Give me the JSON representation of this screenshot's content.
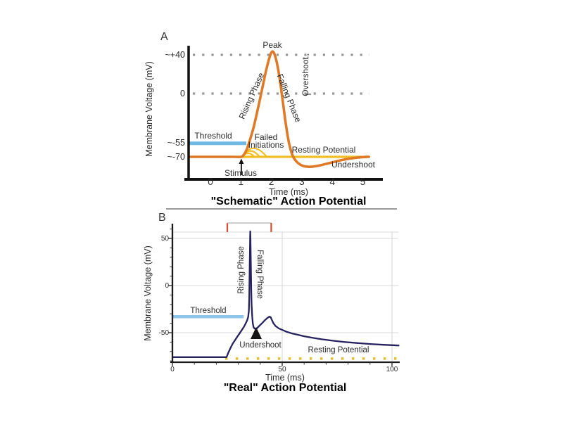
{
  "figure": {
    "background": "#ffffff",
    "separator_color": "#9a9a9a"
  },
  "panel_a": {
    "letter": "A",
    "annotations": {
      "peak": "Peak",
      "rising_phase": "Rising Phase",
      "falling_phase": "Falling Phase",
      "overshoot": "Overshoot",
      "overshoot_arrow": "↑",
      "threshold": "Threshold",
      "failed_line1": "Failed",
      "failed_line2": "Initiations",
      "stimulus": "Stimulus",
      "resting_potential": "Resting Potential",
      "undershoot": "Undershoot"
    },
    "colors": {
      "curve": "#DE7A28",
      "resting_line": "#F0BE25",
      "threshold_line": "#6FB9E3",
      "dotted_reference": "#999999",
      "axis": "#111111"
    }
  },
  "panel_b": {
    "letter": "B",
    "annotations": {
      "threshold": "Threshold",
      "rising_phase": "Rising Phase",
      "falling_phase": "Falling Phase",
      "undershoot": "Undershoot",
      "resting_potential": "Resting Potential"
    },
    "colors": {
      "curve": "#26215F",
      "resting_dotted": "#E2BE2E",
      "threshold_line": "#8CC5E9",
      "pulse_edge": "#D4502E",
      "pulse_top": "#BBBBBB",
      "gridline": "#D8D8D8",
      "axis": "#1A1A1A"
    }
  },
  "chart_data": [
    {
      "type": "line",
      "title": "\"Schematic\" Action Potential",
      "xlabel": "Time (ms)",
      "ylabel": "Membrane Voltage (mV)",
      "xlim": [
        -0.7,
        5.5
      ],
      "x_ticks": [
        0,
        1,
        2,
        3,
        4,
        5
      ],
      "y_ticks": [
        {
          "label": "~+40",
          "mv": 40
        },
        {
          "label": "0",
          "mv": 0
        },
        {
          "label": "~-55",
          "mv": -55
        },
        {
          "label": "~-70",
          "mv": -70
        }
      ],
      "dotted_reference_mv": [
        40,
        0
      ],
      "threshold_mv": -55,
      "resting_mv": -70,
      "peak_mv": 43.5,
      "undershoot_min_mv": -81,
      "stimulus_at_ms": 1.0,
      "series": [
        {
          "name": "action-potential",
          "color": "#DE7A28",
          "points": [
            [
              -0.68,
              -70
            ],
            [
              0.3,
              -70
            ],
            [
              0.75,
              -70
            ],
            [
              1.0,
              -70
            ],
            [
              1.1,
              -67.5
            ],
            [
              1.2,
              -61
            ],
            [
              1.3,
              -51
            ],
            [
              1.42,
              -37
            ],
            [
              1.55,
              -18
            ],
            [
              1.68,
              2
            ],
            [
              1.8,
              20
            ],
            [
              1.9,
              33
            ],
            [
              1.98,
              41
            ],
            [
              2.04,
              43.5
            ],
            [
              2.1,
              41
            ],
            [
              2.18,
              32
            ],
            [
              2.28,
              14
            ],
            [
              2.38,
              -10
            ],
            [
              2.48,
              -35
            ],
            [
              2.58,
              -55
            ],
            [
              2.68,
              -67
            ],
            [
              2.76,
              -72.5
            ],
            [
              2.88,
              -77
            ],
            [
              3.02,
              -79.8
            ],
            [
              3.2,
              -81
            ],
            [
              3.4,
              -80.6
            ],
            [
              3.65,
              -79
            ],
            [
              3.95,
              -76.5
            ],
            [
              4.25,
              -74
            ],
            [
              4.55,
              -72
            ],
            [
              4.85,
              -70.7
            ],
            [
              5.1,
              -70.1
            ],
            [
              5.2,
              -70
            ]
          ]
        },
        {
          "name": "resting-potential-line",
          "color": "#F0BE25",
          "points": [
            [
              1.0,
              -70
            ],
            [
              4.95,
              -70
            ]
          ]
        },
        {
          "name": "threshold-line",
          "color": "#6FB9E3",
          "points": [
            [
              -0.72,
              -55
            ],
            [
              1.18,
              -55
            ]
          ]
        }
      ],
      "failed_initiations": [
        {
          "x1": 1.05,
          "x2": 1.45,
          "peak_mv": -66
        },
        {
          "x1": 1.05,
          "x2": 1.62,
          "peak_mv": -63.5
        },
        {
          "x1": 1.05,
          "x2": 1.85,
          "peak_mv": -60.5
        }
      ]
    },
    {
      "type": "line",
      "title": "\"Real\" Action Potential",
      "xlabel": "Time (ms)",
      "ylabel": "Membrane Voltage (mV)",
      "xlim": [
        0,
        105
      ],
      "x_ticks": [
        0,
        50,
        100
      ],
      "y_ticks": [
        {
          "label": "50",
          "mv": 50
        },
        {
          "label": "0",
          "mv": 0
        },
        {
          "label": "-50",
          "mv": -50
        }
      ],
      "threshold_mv": -33,
      "resting_mv": -77.5,
      "peak_mv": 57.5,
      "stimulus_pulse": {
        "start_ms": 25,
        "end_ms": 45
      },
      "series": [
        {
          "name": "membrane-voltage",
          "color": "#26215F",
          "points": [
            [
              0,
              -76
            ],
            [
              5,
              -76
            ],
            [
              10,
              -76
            ],
            [
              15,
              -76
            ],
            [
              20,
              -76
            ],
            [
              24.6,
              -76
            ],
            [
              24.9,
              -74.5
            ],
            [
              25.5,
              -71
            ],
            [
              26.5,
              -66
            ],
            [
              27.5,
              -61.5
            ],
            [
              28.5,
              -58
            ],
            [
              29.5,
              -54.5
            ],
            [
              30.5,
              -51
            ],
            [
              31.5,
              -47.5
            ],
            [
              32.5,
              -44
            ],
            [
              33.3,
              -40.5
            ],
            [
              34.0,
              -37
            ],
            [
              34.5,
              -33.5
            ],
            [
              34.8,
              -27
            ],
            [
              35.0,
              -12
            ],
            [
              35.2,
              20
            ],
            [
              35.35,
              45
            ],
            [
              35.45,
              57.5
            ],
            [
              35.55,
              50
            ],
            [
              35.7,
              25
            ],
            [
              35.9,
              -5
            ],
            [
              36.1,
              -22
            ],
            [
              36.35,
              -33
            ],
            [
              36.6,
              -40
            ],
            [
              37.0,
              -44.5
            ],
            [
              37.6,
              -46
            ],
            [
              38.4,
              -45.5
            ],
            [
              39.5,
              -43
            ],
            [
              40.8,
              -40
            ],
            [
              42.0,
              -37
            ],
            [
              43.2,
              -34.5
            ],
            [
              44.2,
              -33
            ],
            [
              44.7,
              -33.5
            ],
            [
              45.2,
              -36
            ],
            [
              46,
              -40
            ],
            [
              47,
              -43
            ],
            [
              48.5,
              -45.5
            ],
            [
              50,
              -47
            ],
            [
              52,
              -49
            ],
            [
              54.5,
              -50.8
            ],
            [
              57,
              -52.2
            ],
            [
              60,
              -53.8
            ],
            [
              64,
              -55.5
            ],
            [
              68,
              -57
            ],
            [
              73,
              -58.5
            ],
            [
              78,
              -59.8
            ],
            [
              84,
              -61
            ],
            [
              90,
              -62
            ],
            [
              96,
              -62.8
            ],
            [
              103,
              -63.6
            ]
          ]
        },
        {
          "name": "threshold-line",
          "color": "#8CC5E9",
          "points": [
            [
              0,
              -33
            ],
            [
              32.4,
              -33
            ]
          ]
        },
        {
          "name": "resting-potential-dotted",
          "color": "#E2BE2E",
          "points": [
            [
              24,
              -77.5
            ],
            [
              102.5,
              -77.5
            ]
          ]
        }
      ]
    }
  ]
}
